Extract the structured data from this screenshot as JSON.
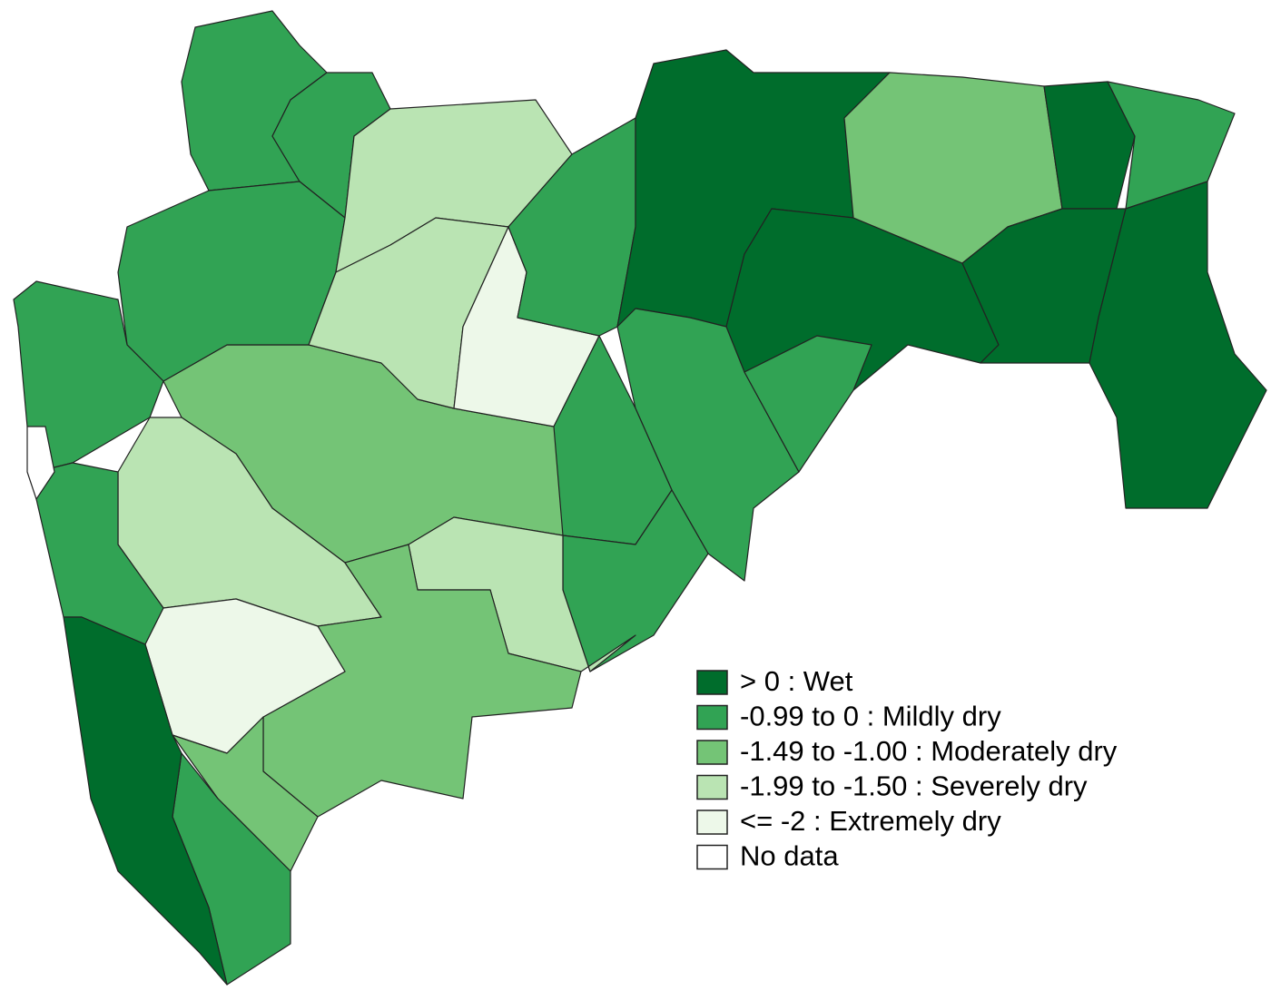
{
  "legend": {
    "items": [
      {
        "label": "> 0 : Wet",
        "color": "#006d2c"
      },
      {
        "label": "-0.99 to 0 : Mildly dry",
        "color": "#31a354"
      },
      {
        "label": "-1.49 to -1.00 : Moderately dry",
        "color": "#74c476"
      },
      {
        "label": "-1.99 to -1.50 : Severely dry",
        "color": "#bae4b3"
      },
      {
        "label": "<= -2 : Extremely dry",
        "color": "#edf8e9"
      },
      {
        "label": "No data",
        "color": "#ffffff"
      }
    ]
  }
}
